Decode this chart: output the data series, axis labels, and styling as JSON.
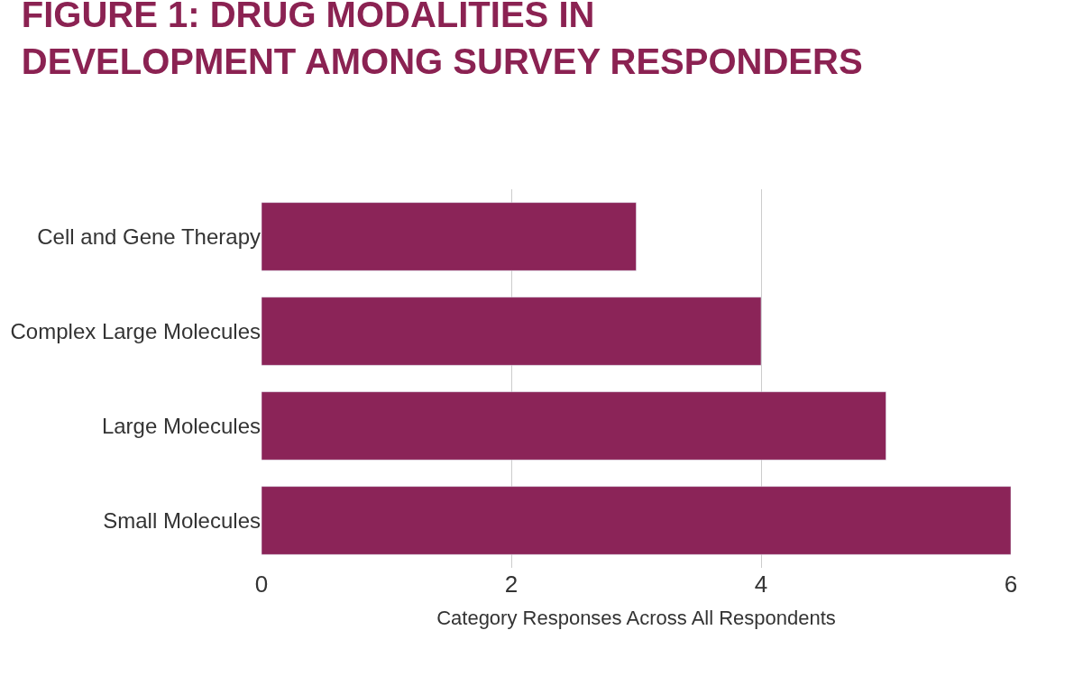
{
  "chart_data": {
    "type": "bar",
    "orientation": "horizontal",
    "title": "FIGURE 1: DRUG MODALITIES IN DEVELOPMENT AMONG SURVEY RESPONDERS",
    "xlabel": "Category Responses Across All Respondents",
    "categories": [
      "Cell and Gene Therapy",
      "Complex Large Molecules",
      "Large Molecules",
      "Small Molecules"
    ],
    "values": [
      3,
      4,
      5,
      6
    ],
    "color": "#8b2458",
    "xlim": [
      0,
      6
    ],
    "xticks": [
      0,
      2,
      4,
      6
    ],
    "grid": "x"
  }
}
